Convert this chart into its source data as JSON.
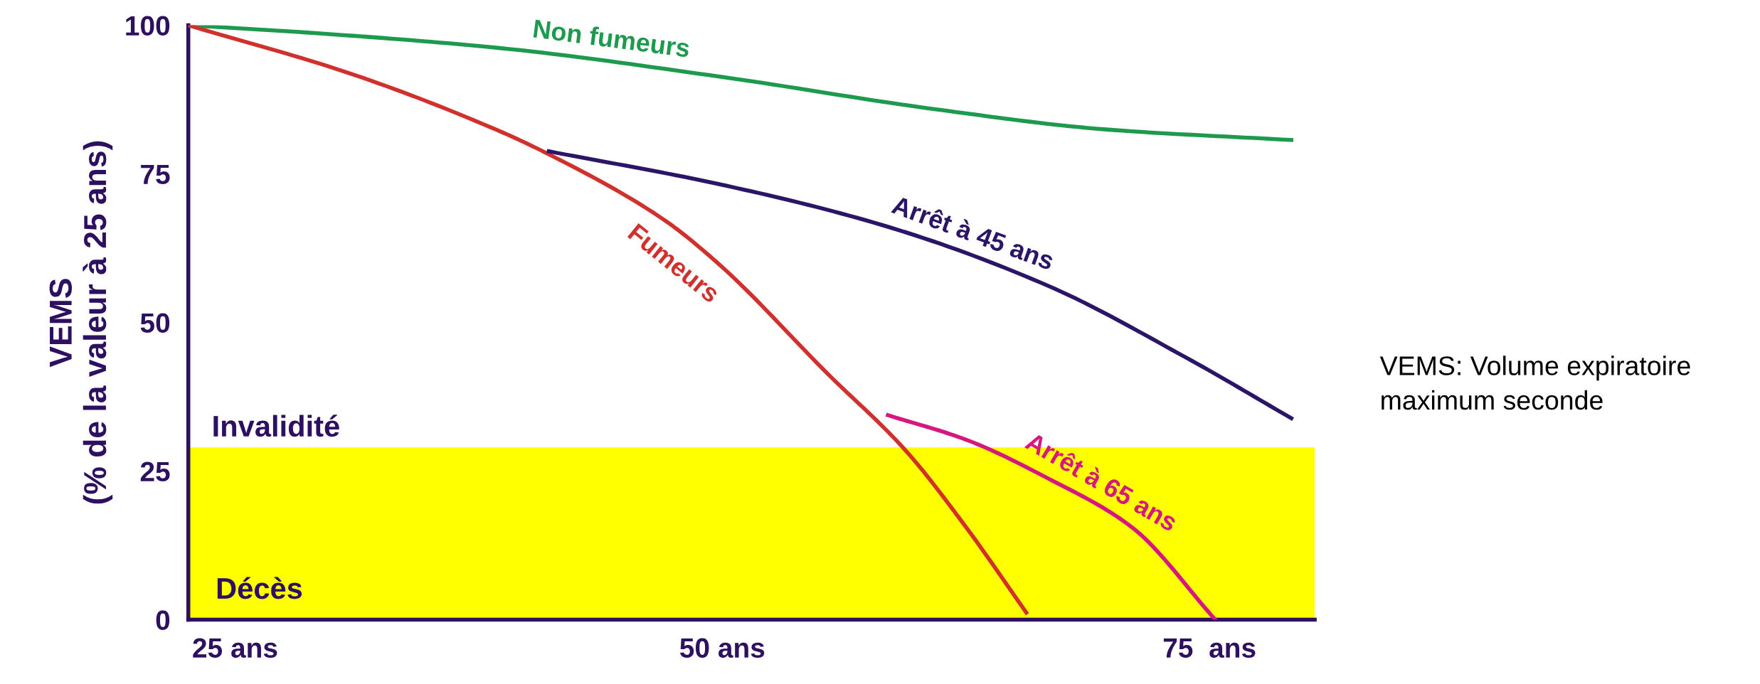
{
  "chart_data": {
    "type": "line",
    "ylabel": "VEMS\n(% de la valeur à 25 ans)",
    "xlim": [
      22.6,
      80.4
    ],
    "ylim": [
      0,
      100
    ],
    "xticks": [
      {
        "value": 25,
        "label": "25 ans"
      },
      {
        "value": 50,
        "label": "50 ans"
      },
      {
        "value": 75,
        "label": "75  ans"
      }
    ],
    "yticks": [
      0,
      25,
      50,
      75,
      100
    ],
    "grid": false,
    "legend": false,
    "marker": "none",
    "line_style": "solid",
    "series": [
      {
        "name": "Non fumeurs",
        "color": "#1e9a4e",
        "x": [
          22.6,
          28.6,
          38.5,
          49.8,
          61.1,
          69.6,
          79.2
        ],
        "values": [
          100,
          98.8,
          96.2,
          91.4,
          85.8,
          82.5,
          80.7
        ]
      },
      {
        "name": "Fumeurs",
        "color": "#d0312d",
        "x": [
          22.6,
          30.9,
          38.5,
          41.1,
          47.0,
          49.8,
          55.4,
          59.4,
          62.5,
          65.6
        ],
        "values": [
          100,
          91.9,
          82.3,
          78.3,
          67.3,
          59.9,
          41.4,
          28.5,
          15.6,
          1.2
        ]
      },
      {
        "name": "Arrêt à 45 ans",
        "color": "#2a1566",
        "x": [
          41.1,
          49.8,
          58.2,
          66.7,
          73.8,
          79.2
        ],
        "values": [
          78.8,
          73.3,
          66.4,
          56.2,
          44.1,
          33.9
        ]
      },
      {
        "name": "Arrêt à 65 ans",
        "color": "#d6177f",
        "x": [
          58.5,
          62.5,
          66.7,
          71.0,
          75.3
        ],
        "values": [
          34.4,
          30.3,
          23.8,
          15.6,
          0
        ]
      }
    ],
    "bands": [
      {
        "axis": "y",
        "from": 0,
        "to": 29,
        "label": "Invalidité",
        "color": "#ffff00"
      }
    ],
    "annotations": [
      "Décès",
      "VEMS: Volume expiratoire maximum seconde"
    ]
  }
}
